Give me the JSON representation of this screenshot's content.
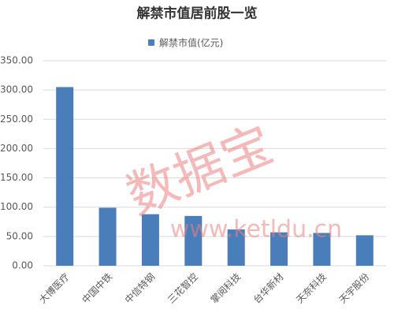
{
  "chart_data": {
    "type": "bar",
    "title": "解禁市值居前股一览",
    "series": [
      {
        "name": "解禁市值(亿元)",
        "color": "#4a7ebb",
        "values": [
          305,
          99,
          88,
          85,
          62,
          57,
          56,
          52
        ]
      }
    ],
    "categories": [
      "大博医疗",
      "中国中铁",
      "中信特钢",
      "三花智控",
      "掌阅科技",
      "台华新材",
      "天奈科技",
      "天宇股份"
    ],
    "ylim": [
      0,
      350
    ],
    "yticks": [
      {
        "value": 0,
        "label": "0.00"
      },
      {
        "value": 50,
        "label": "50.00"
      },
      {
        "value": 100,
        "label": "100.00"
      },
      {
        "value": 150,
        "label": "150.00"
      },
      {
        "value": 200,
        "label": "200.00"
      },
      {
        "value": 250,
        "label": "250.00"
      },
      {
        "value": 300,
        "label": "300.00"
      },
      {
        "value": 350,
        "label": "350.00"
      }
    ],
    "grid": true,
    "watermark": [
      "数据宝",
      "www.ketldu.cn"
    ]
  }
}
